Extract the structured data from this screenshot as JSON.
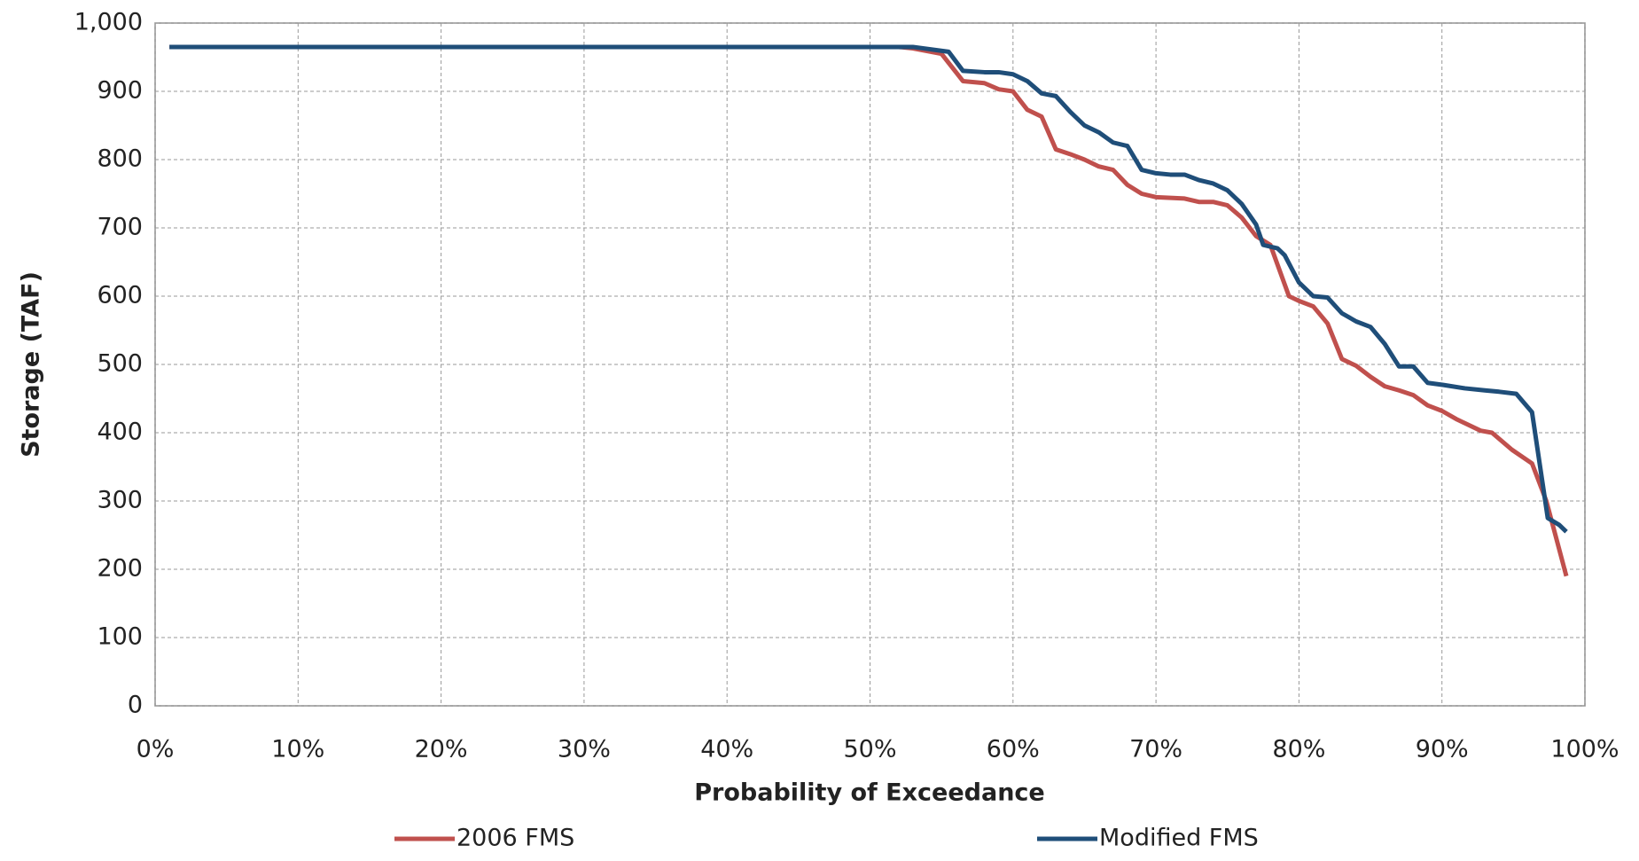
{
  "chart_data": {
    "type": "line",
    "x_label": "Probability of Exceedance",
    "y_label": "Storage (TAF)",
    "xlim": [
      0,
      100
    ],
    "xticks": [
      {
        "value": 0,
        "label": "0%"
      },
      {
        "value": 10,
        "label": "10%"
      },
      {
        "value": 20,
        "label": "20%"
      },
      {
        "value": 30,
        "label": "30%"
      },
      {
        "value": 40,
        "label": "40%"
      },
      {
        "value": 50,
        "label": "50%"
      },
      {
        "value": 60,
        "label": "60%"
      },
      {
        "value": 70,
        "label": "70%"
      },
      {
        "value": 80,
        "label": "80%"
      },
      {
        "value": 90,
        "label": "90%"
      },
      {
        "value": 100,
        "label": "100%"
      }
    ],
    "ylim": [
      0,
      1000
    ],
    "yticks": [
      0,
      100,
      200,
      300,
      400,
      500,
      600,
      700,
      800,
      900,
      {
        "value": 1000,
        "label": "1,000"
      }
    ],
    "grid": true,
    "legend": "bottom",
    "series": [
      {
        "name": "2006 FMS",
        "color": "#c0504d",
        "x": [
          1,
          52,
          53,
          55,
          56.5,
          58,
          59,
          60,
          61,
          62,
          63,
          64,
          65,
          66,
          67,
          68,
          69,
          70,
          72,
          73,
          74,
          75,
          76,
          77,
          78,
          79.3,
          80,
          81,
          82,
          83,
          84,
          85,
          86,
          87,
          88,
          89,
          90,
          91,
          92.7,
          93.5,
          94.9,
          96.3,
          97.3,
          98.7
        ],
        "values": [
          965,
          965,
          963,
          955,
          915,
          912,
          903,
          900,
          873,
          863,
          815,
          808,
          800,
          790,
          785,
          763,
          750,
          745,
          743,
          738,
          738,
          733,
          715,
          688,
          675,
          600,
          593,
          585,
          560,
          508,
          498,
          482,
          468,
          462,
          455,
          440,
          432,
          420,
          403,
          400,
          375,
          355,
          300,
          190
        ]
      },
      {
        "name": "Modified FMS",
        "color": "#1f4e79",
        "x": [
          1,
          53,
          55.5,
          56.5,
          58,
          59,
          60,
          61,
          62,
          63,
          64,
          65,
          66,
          67,
          68,
          69,
          70,
          71,
          72,
          73,
          74,
          75,
          76,
          77,
          77.5,
          78.5,
          79,
          80,
          81,
          82,
          83,
          84,
          85,
          86,
          87,
          88,
          89,
          90.1,
          91.6,
          93,
          94,
          95.2,
          96.3,
          97.4,
          98.2,
          98.7
        ],
        "values": [
          965,
          965,
          958,
          930,
          928,
          928,
          925,
          915,
          897,
          893,
          870,
          850,
          840,
          825,
          820,
          785,
          780,
          778,
          778,
          770,
          765,
          755,
          735,
          705,
          675,
          670,
          660,
          620,
          600,
          598,
          575,
          563,
          555,
          530,
          497,
          497,
          473,
          470,
          465,
          462,
          460,
          457,
          430,
          275,
          265,
          255
        ]
      }
    ]
  }
}
